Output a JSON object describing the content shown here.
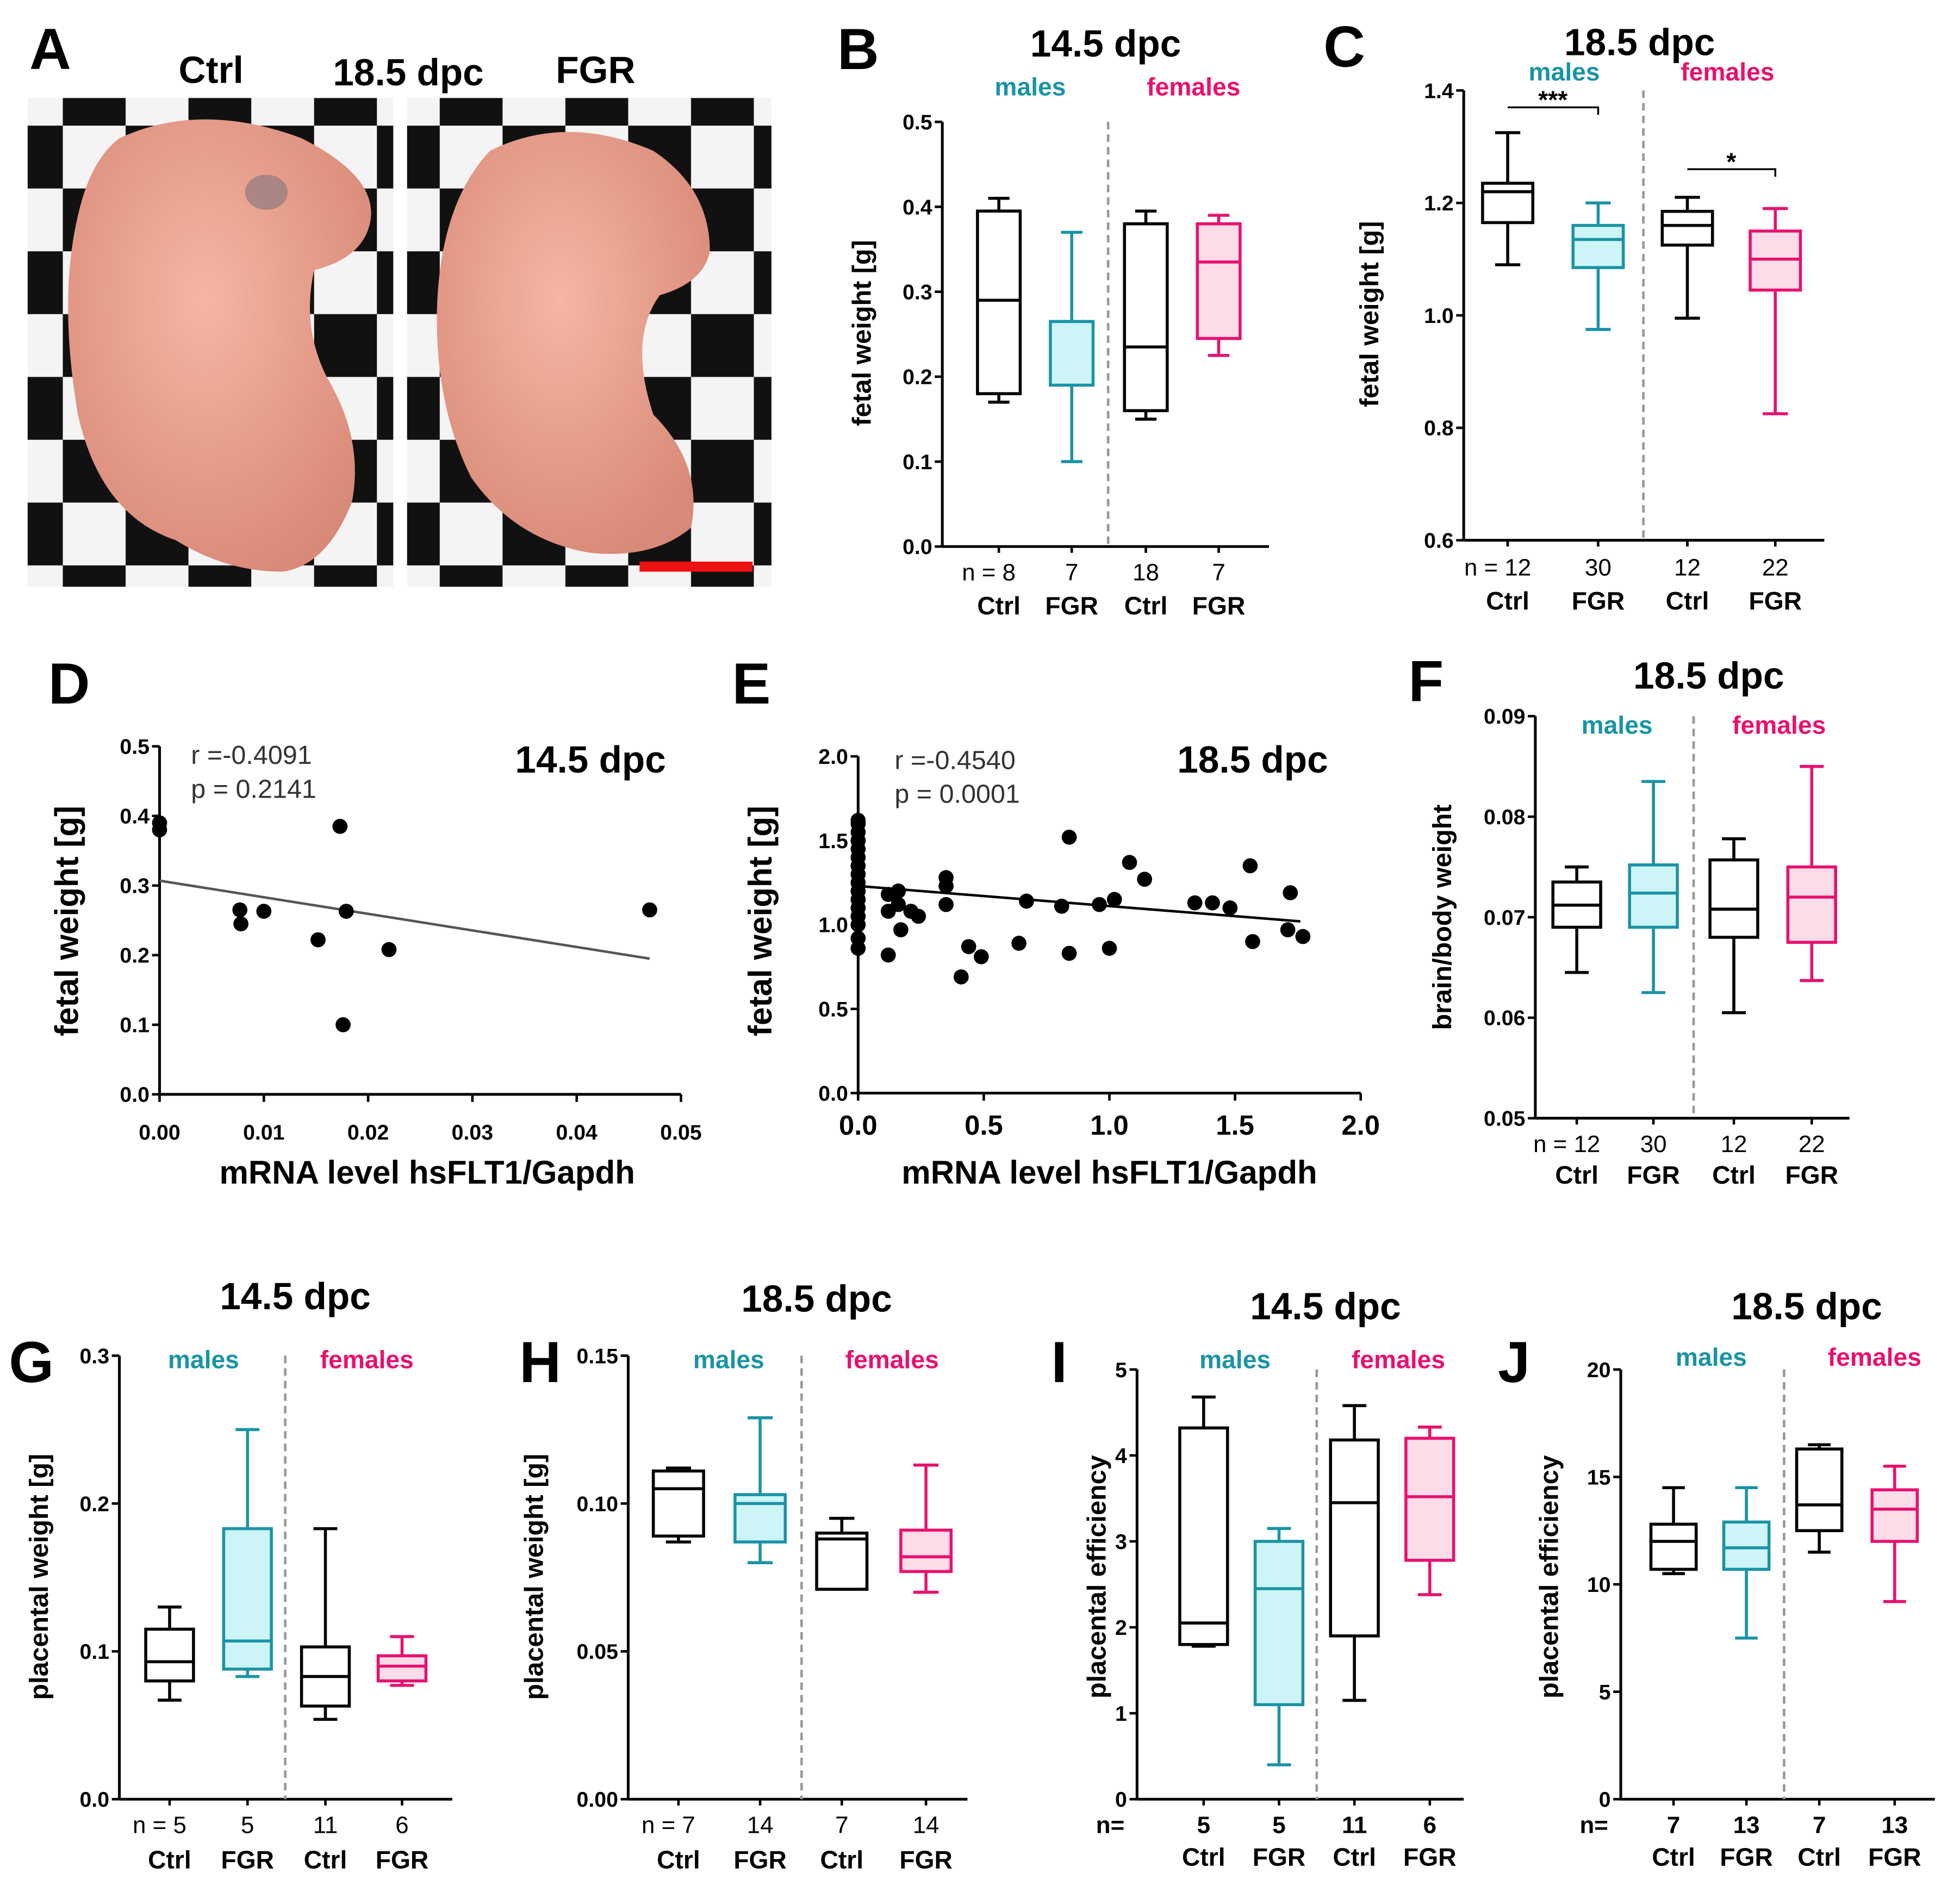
{
  "colors": {
    "ctrl": "#000000",
    "male": "#1a93a6",
    "male_fill": "#cdf5f7",
    "female": "#e8106f",
    "female_fill": "#fcdce8",
    "scale_bar": "#ee1111"
  },
  "panel_letters": [
    "A",
    "B",
    "C",
    "D",
    "E",
    "F",
    "G",
    "H",
    "I",
    "J"
  ],
  "photo": {
    "ctrl_label": "Ctrl",
    "stage": "18.5 dpc",
    "fgr_label": "FGR"
  },
  "chart_data": [
    {
      "id": "B",
      "type": "box",
      "title": "14.5 dpc",
      "ylabel": "fetal weight [g]",
      "ylim": [
        0,
        0.5
      ],
      "yticks": [
        "0.0",
        "0.1",
        "0.2",
        "0.3",
        "0.4",
        "0.5"
      ],
      "ytick_values": [
        0,
        0.1,
        0.2,
        0.3,
        0.4,
        0.5
      ],
      "group_labels": {
        "males": "males",
        "females": "females"
      },
      "n_prefix": "",
      "boxes": [
        {
          "label": "Ctrl",
          "n": "n = 8",
          "sex": "male",
          "kind": "ctrl",
          "whisker_low": 0.17,
          "q1": 0.18,
          "median": 0.29,
          "q3": 0.395,
          "whisker_high": 0.41
        },
        {
          "label": "FGR",
          "n": "7",
          "sex": "male",
          "kind": "fgr",
          "whisker_low": 0.1,
          "q1": 0.19,
          "median": 0.265,
          "q3": 0.265,
          "whisker_high": 0.37
        },
        {
          "label": "Ctrl",
          "n": "18",
          "sex": "female",
          "kind": "ctrl",
          "whisker_low": 0.15,
          "q1": 0.16,
          "median": 0.235,
          "q3": 0.38,
          "whisker_high": 0.395
        },
        {
          "label": "FGR",
          "n": "7",
          "sex": "female",
          "kind": "fgr",
          "whisker_low": 0.225,
          "q1": 0.245,
          "median": 0.335,
          "q3": 0.38,
          "whisker_high": 0.39
        }
      ],
      "significance": []
    },
    {
      "id": "C",
      "type": "box",
      "title": "18.5 dpc",
      "ylabel": "fetal weight [g]",
      "ylim": [
        0.6,
        1.4
      ],
      "yticks": [
        "0.6",
        "0.8",
        "1.0",
        "1.2",
        "1.4"
      ],
      "ytick_values": [
        0.6,
        0.8,
        1.0,
        1.2,
        1.4
      ],
      "group_labels": {
        "males": "males",
        "females": "females"
      },
      "n_prefix": "",
      "boxes": [
        {
          "label": "Ctrl",
          "n": "n = 12",
          "sex": "male",
          "kind": "ctrl",
          "whisker_low": 1.09,
          "q1": 1.165,
          "median": 1.22,
          "q3": 1.235,
          "whisker_high": 1.325
        },
        {
          "label": "FGR",
          "n": "30",
          "sex": "male",
          "kind": "fgr",
          "whisker_low": 0.975,
          "q1": 1.085,
          "median": 1.135,
          "q3": 1.16,
          "whisker_high": 1.2
        },
        {
          "label": "Ctrl",
          "n": "12",
          "sex": "female",
          "kind": "ctrl",
          "whisker_low": 0.995,
          "q1": 1.125,
          "median": 1.16,
          "q3": 1.185,
          "whisker_high": 1.21
        },
        {
          "label": "FGR",
          "n": "22",
          "sex": "female",
          "kind": "fgr",
          "whisker_low": 0.825,
          "q1": 1.045,
          "median": 1.1,
          "q3": 1.15,
          "whisker_high": 1.19
        }
      ],
      "significance": [
        {
          "from": 0,
          "to": 1,
          "label": "***",
          "level": 1.37
        },
        {
          "from": 2,
          "to": 3,
          "label": "*",
          "level": 1.26
        }
      ]
    },
    {
      "id": "D",
      "type": "scatter",
      "title": "14.5 dpc",
      "xlabel": "mRNA level hsFLT1/Gapdh",
      "ylabel": "fetal weight [g]",
      "xlim": [
        0,
        0.05
      ],
      "ylim": [
        0,
        0.5
      ],
      "xticks": [
        "0.00",
        "0.01",
        "0.02",
        "0.03",
        "0.04",
        "0.05"
      ],
      "xtick_values": [
        0,
        0.01,
        0.02,
        0.03,
        0.04,
        0.05
      ],
      "yticks": [
        "0.0",
        "0.1",
        "0.2",
        "0.3",
        "0.4",
        "0.5"
      ],
      "ytick_values": [
        0,
        0.1,
        0.2,
        0.3,
        0.4,
        0.5
      ],
      "stats": {
        "r": "r =-0.4091",
        "p": "p = 0.2141"
      },
      "fit": [
        [
          0,
          0.307
        ],
        [
          0.047,
          0.195
        ]
      ],
      "points": [
        [
          0,
          0.39
        ],
        [
          0,
          0.38
        ],
        [
          0.0077,
          0.265
        ],
        [
          0.0078,
          0.245
        ],
        [
          0.01,
          0.263
        ],
        [
          0.0152,
          0.222
        ],
        [
          0.0173,
          0.385
        ],
        [
          0.0176,
          0.1
        ],
        [
          0.0179,
          0.263
        ],
        [
          0.022,
          0.208
        ],
        [
          0.047,
          0.265
        ]
      ]
    },
    {
      "id": "E",
      "type": "scatter",
      "title": "18.5 dpc",
      "xlabel": "mRNA level hsFLT1/Gapdh",
      "ylabel": "fetal weight [g]",
      "xlim": [
        0,
        2.0
      ],
      "ylim": [
        0,
        2.0
      ],
      "xticks": [
        "0.0",
        "0.5",
        "1.0",
        "1.5",
        "2.0"
      ],
      "xtick_values": [
        0,
        0.5,
        1.0,
        1.5,
        2.0
      ],
      "yticks": [
        "0.0",
        "0.5",
        "1.0",
        "1.5",
        "2.0"
      ],
      "ytick_values": [
        0,
        0.5,
        1.0,
        1.5,
        2.0
      ],
      "stats": {
        "r": "r  =-0.4540",
        "p": "p = 0.0001"
      },
      "fit": [
        [
          0,
          1.23
        ],
        [
          1.76,
          1.02
        ]
      ],
      "points": [
        [
          0,
          0.86
        ],
        [
          0,
          0.92
        ],
        [
          0,
          1.0
        ],
        [
          0,
          1.05
        ],
        [
          0,
          1.1
        ],
        [
          0,
          1.15
        ],
        [
          0,
          1.2
        ],
        [
          0,
          1.25
        ],
        [
          0,
          1.3
        ],
        [
          0,
          1.35
        ],
        [
          0,
          1.4
        ],
        [
          0,
          1.45
        ],
        [
          0,
          1.5
        ],
        [
          0,
          1.55
        ],
        [
          0,
          1.6
        ],
        [
          0,
          1.62
        ],
        [
          0.12,
          1.18
        ],
        [
          0.12,
          1.08
        ],
        [
          0.12,
          0.82
        ],
        [
          0.16,
          1.2
        ],
        [
          0.16,
          1.12
        ],
        [
          0.17,
          0.97
        ],
        [
          0.21,
          1.08
        ],
        [
          0.24,
          1.05
        ],
        [
          0.35,
          1.28
        ],
        [
          0.35,
          1.23
        ],
        [
          0.35,
          1.12
        ],
        [
          0.41,
          0.69
        ],
        [
          0.44,
          0.87
        ],
        [
          0.49,
          0.81
        ],
        [
          0.64,
          0.89
        ],
        [
          0.67,
          1.14
        ],
        [
          0.81,
          1.11
        ],
        [
          0.84,
          1.52
        ],
        [
          0.84,
          0.83
        ],
        [
          0.96,
          1.12
        ],
        [
          1.0,
          0.86
        ],
        [
          1.02,
          1.15
        ],
        [
          1.08,
          1.37
        ],
        [
          1.14,
          1.27
        ],
        [
          1.34,
          1.13
        ],
        [
          1.41,
          1.13
        ],
        [
          1.48,
          1.1
        ],
        [
          1.56,
          1.35
        ],
        [
          1.57,
          0.9
        ],
        [
          1.72,
          1.19
        ],
        [
          1.71,
          0.97
        ],
        [
          1.77,
          0.93
        ]
      ]
    },
    {
      "id": "F",
      "type": "box",
      "title": "18.5 dpc",
      "ylabel": "brain/body weight",
      "ylim": [
        0.05,
        0.09
      ],
      "yticks": [
        "0.05",
        "0.06",
        "0.07",
        "0.08",
        "0.09"
      ],
      "ytick_values": [
        0.05,
        0.06,
        0.07,
        0.08,
        0.09
      ],
      "group_labels": {
        "males": "males",
        "females": "females"
      },
      "n_prefix": "",
      "boxes": [
        {
          "label": "Ctrl",
          "n": "n = 12",
          "sex": "male",
          "kind": "ctrl",
          "whisker_low": 0.0645,
          "q1": 0.069,
          "median": 0.0712,
          "q3": 0.0735,
          "whisker_high": 0.075
        },
        {
          "label": "FGR",
          "n": "30",
          "sex": "male",
          "kind": "fgr",
          "whisker_low": 0.0625,
          "q1": 0.069,
          "median": 0.0724,
          "q3": 0.0752,
          "whisker_high": 0.0835
        },
        {
          "label": "Ctrl",
          "n": "12",
          "sex": "female",
          "kind": "ctrl",
          "whisker_low": 0.0605,
          "q1": 0.068,
          "median": 0.0708,
          "q3": 0.0757,
          "whisker_high": 0.0778
        },
        {
          "label": "FGR",
          "n": "22",
          "sex": "female",
          "kind": "fgr",
          "whisker_low": 0.0637,
          "q1": 0.0675,
          "median": 0.072,
          "q3": 0.075,
          "whisker_high": 0.085
        }
      ],
      "significance": []
    },
    {
      "id": "G",
      "type": "box",
      "title": "14.5 dpc",
      "ylabel": "placental weight [g]",
      "ylim": [
        0,
        0.3
      ],
      "yticks": [
        "0.0",
        "0.1",
        "0.2",
        "0.3"
      ],
      "ytick_values": [
        0,
        0.1,
        0.2,
        0.3
      ],
      "group_labels": {
        "males": "males",
        "females": "females"
      },
      "n_prefix": "",
      "boxes": [
        {
          "label": "Ctrl",
          "n": "n = 5",
          "sex": "male",
          "kind": "ctrl",
          "whisker_low": 0.067,
          "q1": 0.08,
          "median": 0.093,
          "q3": 0.115,
          "whisker_high": 0.13
        },
        {
          "label": "FGR",
          "n": "5",
          "sex": "male",
          "kind": "fgr",
          "whisker_low": 0.083,
          "q1": 0.088,
          "median": 0.107,
          "q3": 0.183,
          "whisker_high": 0.25
        },
        {
          "label": "Ctrl",
          "n": "11",
          "sex": "female",
          "kind": "ctrl",
          "whisker_low": 0.054,
          "q1": 0.063,
          "median": 0.083,
          "q3": 0.103,
          "whisker_high": 0.183
        },
        {
          "label": "FGR",
          "n": "6",
          "sex": "female",
          "kind": "fgr",
          "whisker_low": 0.077,
          "q1": 0.08,
          "median": 0.09,
          "q3": 0.097,
          "whisker_high": 0.11
        }
      ],
      "significance": []
    },
    {
      "id": "H",
      "type": "box",
      "title": "18.5 dpc",
      "ylabel": "placental weight [g]",
      "ylim": [
        0,
        0.15
      ],
      "yticks": [
        "0.00",
        "0.05",
        "0.10",
        "0.15"
      ],
      "ytick_values": [
        0,
        0.05,
        0.1,
        0.15
      ],
      "group_labels": {
        "males": "males",
        "females": "females"
      },
      "n_prefix": "",
      "boxes": [
        {
          "label": "Ctrl",
          "n": "n = 7",
          "sex": "male",
          "kind": "ctrl",
          "whisker_low": 0.087,
          "q1": 0.089,
          "median": 0.105,
          "q3": 0.111,
          "whisker_high": 0.112
        },
        {
          "label": "FGR",
          "n": "14",
          "sex": "male",
          "kind": "fgr",
          "whisker_low": 0.08,
          "q1": 0.087,
          "median": 0.1,
          "q3": 0.103,
          "whisker_high": 0.129
        },
        {
          "label": "Ctrl",
          "n": "7",
          "sex": "female",
          "kind": "ctrl",
          "whisker_low": 0.071,
          "q1": 0.071,
          "median": 0.088,
          "q3": 0.09,
          "whisker_high": 0.095
        },
        {
          "label": "FGR",
          "n": "14",
          "sex": "female",
          "kind": "fgr",
          "whisker_low": 0.07,
          "q1": 0.077,
          "median": 0.082,
          "q3": 0.091,
          "whisker_high": 0.113
        }
      ],
      "significance": []
    },
    {
      "id": "I",
      "type": "box",
      "title": "14.5 dpc",
      "ylabel": "placental efficiency",
      "ylim": [
        0,
        5
      ],
      "yticks": [
        "0",
        "1",
        "2",
        "3",
        "4",
        "5"
      ],
      "ytick_values": [
        0,
        1,
        2,
        3,
        4,
        5
      ],
      "group_labels": {
        "males": "males",
        "females": "females"
      },
      "n_prefix": "n=",
      "boxes": [
        {
          "label": "Ctrl",
          "n": "5",
          "sex": "male",
          "kind": "ctrl",
          "whisker_low": 1.78,
          "q1": 1.8,
          "median": 2.05,
          "q3": 4.32,
          "whisker_high": 4.68
        },
        {
          "label": "FGR",
          "n": "5",
          "sex": "male",
          "kind": "fgr",
          "whisker_low": 0.4,
          "q1": 1.1,
          "median": 2.45,
          "q3": 3.0,
          "whisker_high": 3.15
        },
        {
          "label": "Ctrl",
          "n": "11",
          "sex": "female",
          "kind": "ctrl",
          "whisker_low": 1.15,
          "q1": 1.9,
          "median": 3.45,
          "q3": 4.18,
          "whisker_high": 4.58
        },
        {
          "label": "FGR",
          "n": "6",
          "sex": "female",
          "kind": "fgr",
          "whisker_low": 2.38,
          "q1": 2.78,
          "median": 3.52,
          "q3": 4.2,
          "whisker_high": 4.33
        }
      ],
      "significance": []
    },
    {
      "id": "J",
      "type": "box",
      "title": "18.5 dpc",
      "ylabel": "placental efficiency",
      "ylim": [
        0,
        20
      ],
      "yticks": [
        "0",
        "5",
        "10",
        "15",
        "20"
      ],
      "ytick_values": [
        0,
        5,
        10,
        15,
        20
      ],
      "group_labels": {
        "males": "males",
        "females": "females"
      },
      "n_prefix": "n=",
      "boxes": [
        {
          "label": "Ctrl",
          "n": "7",
          "sex": "male",
          "kind": "ctrl",
          "whisker_low": 10.5,
          "q1": 10.7,
          "median": 12.0,
          "q3": 12.8,
          "whisker_high": 14.5
        },
        {
          "label": "FGR",
          "n": "13",
          "sex": "male",
          "kind": "fgr",
          "whisker_low": 7.5,
          "q1": 10.7,
          "median": 11.7,
          "q3": 12.9,
          "whisker_high": 14.5
        },
        {
          "label": "Ctrl",
          "n": "7",
          "sex": "female",
          "kind": "ctrl",
          "whisker_low": 11.5,
          "q1": 12.5,
          "median": 13.7,
          "q3": 16.3,
          "whisker_high": 16.5
        },
        {
          "label": "FGR",
          "n": "13",
          "sex": "female",
          "kind": "fgr",
          "whisker_low": 9.2,
          "q1": 12.0,
          "median": 13.5,
          "q3": 14.4,
          "whisker_high": 15.5
        }
      ],
      "significance": []
    }
  ]
}
